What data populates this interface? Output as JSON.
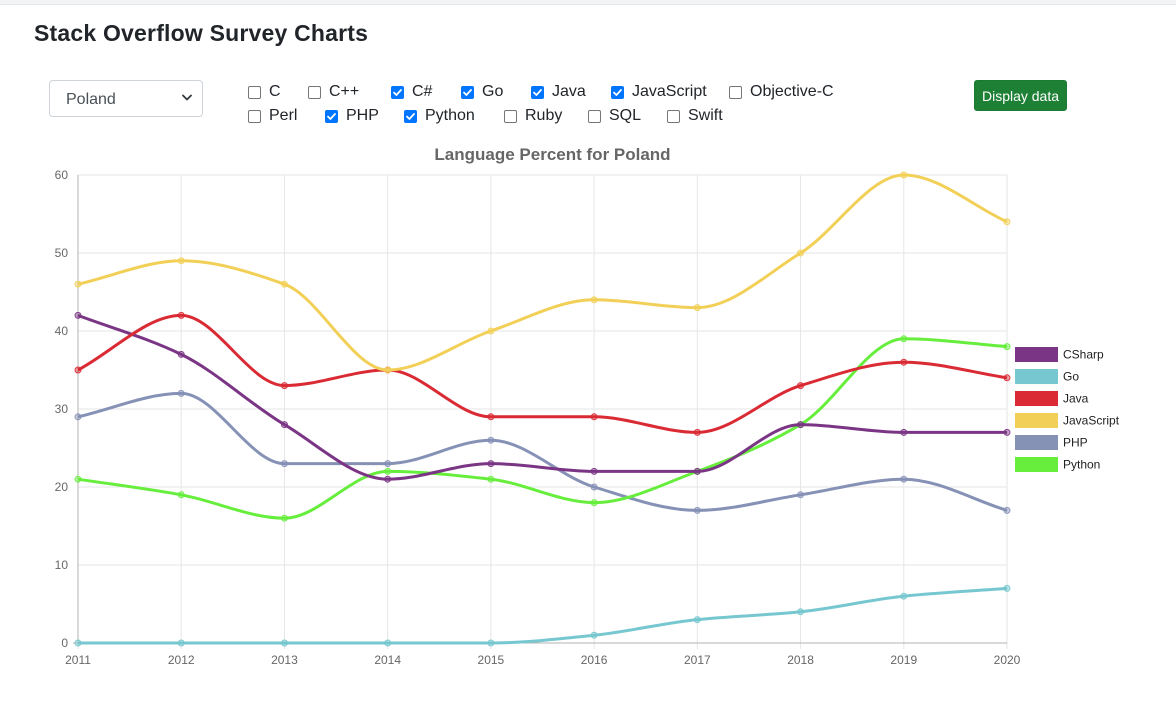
{
  "page": {
    "title": "Stack Overflow Survey Charts"
  },
  "country_select": {
    "value": "Poland"
  },
  "languages": [
    {
      "label": "C",
      "checked": false
    },
    {
      "label": "C++",
      "checked": false
    },
    {
      "label": "C#",
      "checked": true
    },
    {
      "label": "Go",
      "checked": true
    },
    {
      "label": "Java",
      "checked": true
    },
    {
      "label": "JavaScript",
      "checked": true
    },
    {
      "label": "Objective-C",
      "checked": false
    },
    {
      "label": "Perl",
      "checked": false
    },
    {
      "label": "PHP",
      "checked": true
    },
    {
      "label": "Python",
      "checked": true
    },
    {
      "label": "Ruby",
      "checked": false
    },
    {
      "label": "SQL",
      "checked": false
    },
    {
      "label": "Swift",
      "checked": false
    }
  ],
  "display_button": {
    "label": "Display data"
  },
  "chart_data": {
    "type": "line",
    "title": "Language Percent for Poland",
    "x": [
      2011,
      2012,
      2013,
      2014,
      2015,
      2016,
      2017,
      2018,
      2019,
      2020
    ],
    "ylim": [
      0,
      60
    ],
    "yticks": [
      0,
      10,
      20,
      30,
      40,
      50,
      60
    ],
    "grid": true,
    "legend": "right",
    "series": [
      {
        "name": "CSharp",
        "color": "#7b3585",
        "values": [
          42,
          37,
          28,
          21,
          23,
          22,
          22,
          28,
          27,
          27
        ]
      },
      {
        "name": "Go",
        "color": "#76c7cf",
        "values": [
          0,
          0,
          0,
          0,
          0,
          1,
          3,
          4,
          6,
          7
        ]
      },
      {
        "name": "Java",
        "color": "#da2a34",
        "values": [
          35,
          42,
          33,
          35,
          29,
          29,
          27,
          33,
          36,
          34
        ]
      },
      {
        "name": "JavaScript",
        "color": "#f2d057",
        "values": [
          46,
          49,
          46,
          35,
          40,
          44,
          43,
          50,
          60,
          54
        ]
      },
      {
        "name": "PHP",
        "color": "#8691b6",
        "values": [
          29,
          32,
          23,
          23,
          26,
          20,
          17,
          19,
          21,
          17
        ]
      },
      {
        "name": "Python",
        "color": "#67ee3d",
        "values": [
          21,
          19,
          16,
          22,
          21,
          18,
          22,
          28,
          39,
          38
        ]
      }
    ]
  }
}
